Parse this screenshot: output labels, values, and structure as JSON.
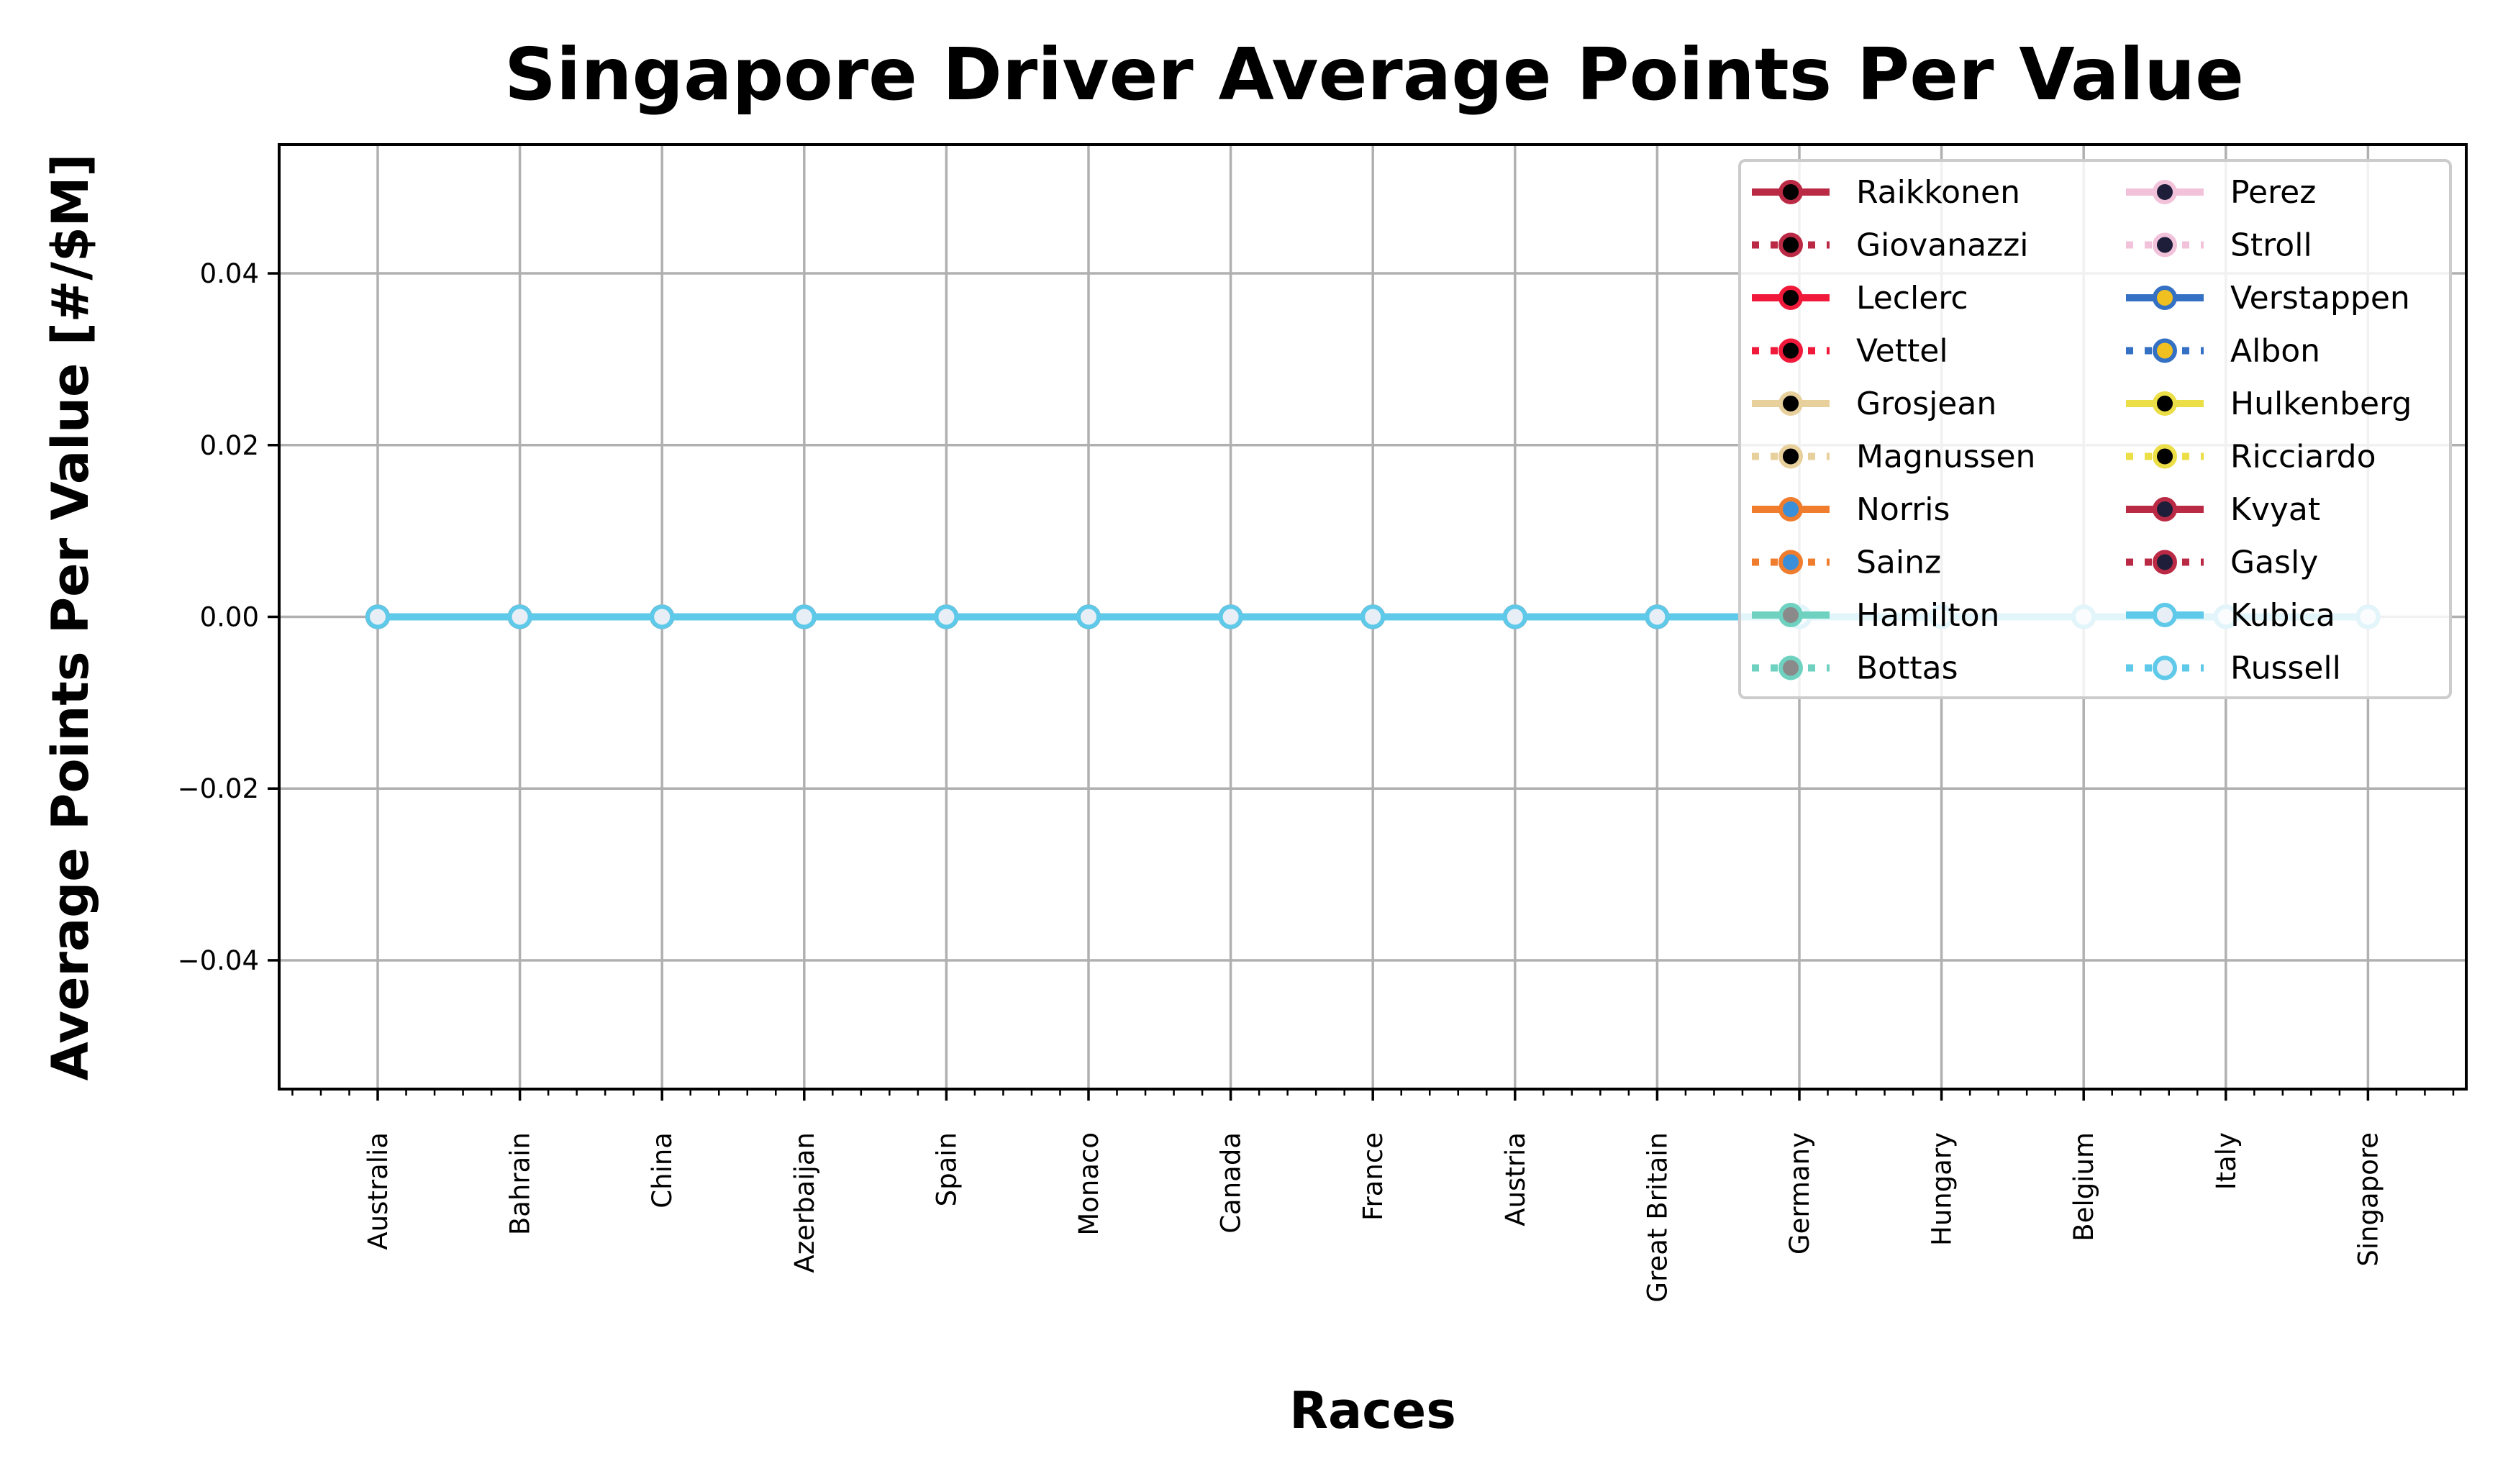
{
  "chart_data": {
    "type": "line",
    "title": "Singapore Driver Average Points Per Value",
    "xlabel": "Races",
    "ylabel": "Average Points Per Value [#/$M]",
    "categories": [
      "Australia",
      "Bahrain",
      "China",
      "Azerbaijan",
      "Spain",
      "Monaco",
      "Canada",
      "France",
      "Austria",
      "Great Britain",
      "Germany",
      "Hungary",
      "Belgium",
      "Italy",
      "Singapore"
    ],
    "ylim": [
      -0.055,
      0.055
    ],
    "yticks": [
      -0.04,
      -0.02,
      0.0,
      0.02,
      0.04
    ],
    "ytick_labels": [
      "−0.04",
      "−0.02",
      "0.00",
      "0.02",
      "0.04"
    ],
    "grid": true,
    "legend_position": "top-right",
    "legend_columns": 2,
    "series": [
      {
        "name": "Raikkonen",
        "color": "#bb2a44",
        "marker_fill": "#000000",
        "dash": "solid",
        "values": [
          0,
          0,
          0,
          0,
          0,
          0,
          0,
          0,
          0,
          0,
          0,
          0,
          0,
          0,
          0
        ]
      },
      {
        "name": "Giovanazzi",
        "color": "#bb2a44",
        "marker_fill": "#000000",
        "dash": "dotted",
        "values": [
          0,
          0,
          0,
          0,
          0,
          0,
          0,
          0,
          0,
          0,
          0,
          0,
          0,
          0,
          0
        ]
      },
      {
        "name": "Leclerc",
        "color": "#f0193a",
        "marker_fill": "#000000",
        "dash": "solid",
        "values": [
          0,
          0,
          0,
          0,
          0,
          0,
          0,
          0,
          0,
          0,
          0,
          0,
          0,
          0,
          0
        ]
      },
      {
        "name": "Vettel",
        "color": "#f0193a",
        "marker_fill": "#000000",
        "dash": "dotted",
        "values": [
          0,
          0,
          0,
          0,
          0,
          0,
          0,
          0,
          0,
          0,
          0,
          0,
          0,
          0,
          0
        ]
      },
      {
        "name": "Grosjean",
        "color": "#e8d09c",
        "marker_fill": "#000000",
        "dash": "solid",
        "values": [
          0,
          0,
          0,
          0,
          0,
          0,
          0,
          0,
          0,
          0,
          0,
          0,
          0,
          0,
          0
        ]
      },
      {
        "name": "Magnussen",
        "color": "#e8d09c",
        "marker_fill": "#000000",
        "dash": "dotted",
        "values": [
          0,
          0,
          0,
          0,
          0,
          0,
          0,
          0,
          0,
          0,
          0,
          0,
          0,
          0,
          0
        ]
      },
      {
        "name": "Norris",
        "color": "#f07d2d",
        "marker_fill": "#3a8fd8",
        "dash": "solid",
        "values": [
          0,
          0,
          0,
          0,
          0,
          0,
          0,
          0,
          0,
          0,
          0,
          0,
          0,
          0,
          0
        ]
      },
      {
        "name": "Sainz",
        "color": "#f07d2d",
        "marker_fill": "#3a8fd8",
        "dash": "dotted",
        "values": [
          0,
          0,
          0,
          0,
          0,
          0,
          0,
          0,
          0,
          0,
          0,
          0,
          0,
          0,
          0
        ]
      },
      {
        "name": "Hamilton",
        "color": "#6fd2c0",
        "marker_fill": "#8a8a8a",
        "dash": "solid",
        "values": [
          0,
          0,
          0,
          0,
          0,
          0,
          0,
          0,
          0,
          0,
          0,
          0,
          0,
          0,
          0
        ]
      },
      {
        "name": "Bottas",
        "color": "#6fd2c0",
        "marker_fill": "#8a8a8a",
        "dash": "dotted",
        "values": [
          0,
          0,
          0,
          0,
          0,
          0,
          0,
          0,
          0,
          0,
          0,
          0,
          0,
          0,
          0
        ]
      },
      {
        "name": "Perez",
        "color": "#f2c2da",
        "marker_fill": "#1e1e3a",
        "dash": "solid",
        "values": [
          0,
          0,
          0,
          0,
          0,
          0,
          0,
          0,
          0,
          0,
          0,
          0,
          0,
          0,
          0
        ]
      },
      {
        "name": "Stroll",
        "color": "#f2c2da",
        "marker_fill": "#1e1e3a",
        "dash": "dotted",
        "values": [
          0,
          0,
          0,
          0,
          0,
          0,
          0,
          0,
          0,
          0,
          0,
          0,
          0,
          0,
          0
        ]
      },
      {
        "name": "Verstappen",
        "color": "#3470c4",
        "marker_fill": "#f0c020",
        "dash": "solid",
        "values": [
          0,
          0,
          0,
          0,
          0,
          0,
          0,
          0,
          0,
          0,
          0,
          0,
          0,
          0,
          0
        ]
      },
      {
        "name": "Albon",
        "color": "#3470c4",
        "marker_fill": "#f0c020",
        "dash": "dotted",
        "values": [
          0,
          0,
          0,
          0,
          0,
          0,
          0,
          0,
          0,
          0,
          0,
          0,
          0,
          0,
          0
        ]
      },
      {
        "name": "Hulkenberg",
        "color": "#ecde47",
        "marker_fill": "#000000",
        "dash": "solid",
        "values": [
          0,
          0,
          0,
          0,
          0,
          0,
          0,
          0,
          0,
          0,
          0,
          0,
          0,
          0,
          0
        ]
      },
      {
        "name": "Ricciardo",
        "color": "#ecde47",
        "marker_fill": "#000000",
        "dash": "dotted",
        "values": [
          0,
          0,
          0,
          0,
          0,
          0,
          0,
          0,
          0,
          0,
          0,
          0,
          0,
          0,
          0
        ]
      },
      {
        "name": "Kvyat",
        "color": "#bb2a44",
        "marker_fill": "#1e1e3a",
        "dash": "solid",
        "values": [
          0,
          0,
          0,
          0,
          0,
          0,
          0,
          0,
          0,
          0,
          0,
          0,
          0,
          0,
          0
        ]
      },
      {
        "name": "Gasly",
        "color": "#bb2a44",
        "marker_fill": "#1e1e3a",
        "dash": "dotted",
        "values": [
          0,
          0,
          0,
          0,
          0,
          0,
          0,
          0,
          0,
          0,
          0,
          0,
          0,
          0,
          0
        ]
      },
      {
        "name": "Kubica",
        "color": "#5ec9e8",
        "marker_fill": "#e8eef6",
        "dash": "solid",
        "values": [
          0,
          0,
          0,
          0,
          0,
          0,
          0,
          0,
          0,
          0,
          0,
          0,
          0,
          0,
          0
        ]
      },
      {
        "name": "Russell",
        "color": "#5ec9e8",
        "marker_fill": "#e8eef6",
        "dash": "dotted",
        "values": [
          0,
          0,
          0,
          0,
          0,
          0,
          0,
          0,
          0,
          0,
          0,
          0,
          0,
          0,
          0
        ]
      }
    ]
  }
}
